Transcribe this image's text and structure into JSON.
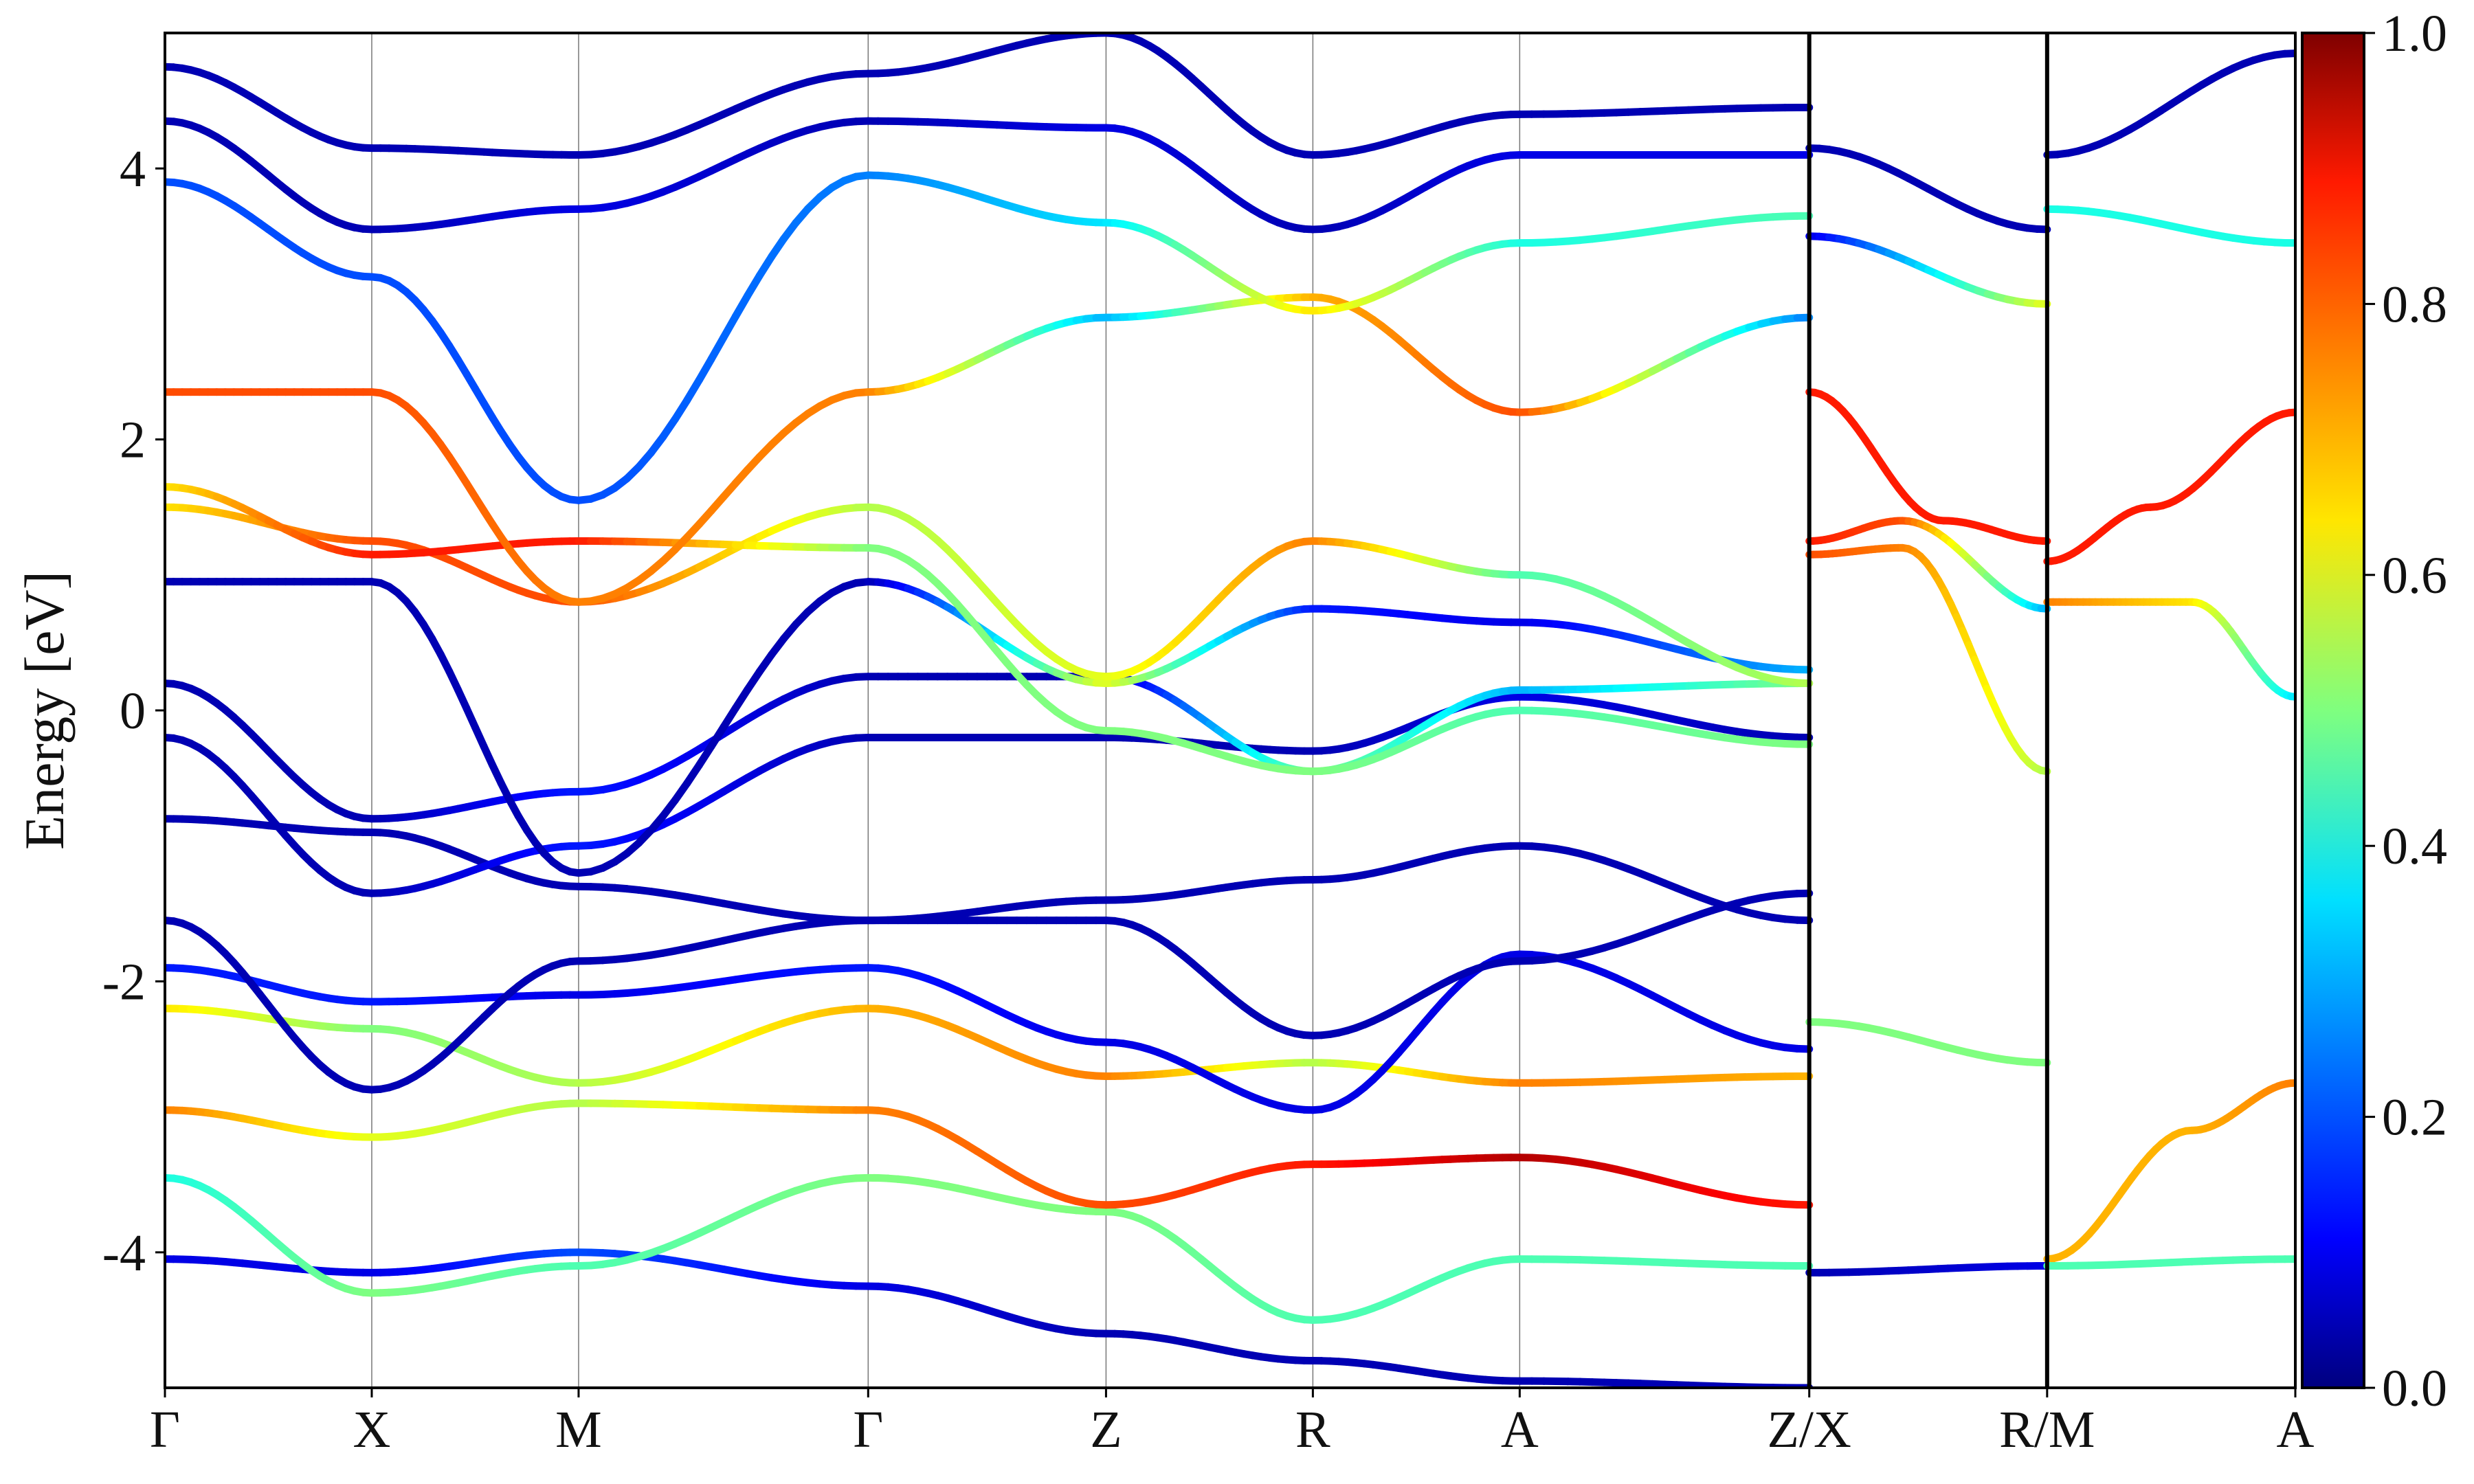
{
  "chart_data": {
    "type": "line",
    "title": "",
    "xlabel": "",
    "ylabel": "Energy [eV]",
    "ylim": [
      -5,
      5
    ],
    "y_ticks": [
      -4,
      -2,
      0,
      2,
      4
    ],
    "y_tick_labels": [
      "-4",
      "-2",
      "0",
      "2",
      "4"
    ],
    "k_points": [
      {
        "label": "Γ",
        "x": 0.0
      },
      {
        "label": "X",
        "x": 1.0
      },
      {
        "label": "M",
        "x": 2.0
      },
      {
        "label": "Γ",
        "x": 3.4
      },
      {
        "label": "Z",
        "x": 4.55
      },
      {
        "label": "R",
        "x": 5.55
      },
      {
        "label": "A",
        "x": 6.55
      },
      {
        "label": "Z/X",
        "x": 7.95
      },
      {
        "label": "R/M",
        "x": 9.1
      },
      {
        "label": "A",
        "x": 10.3
      }
    ],
    "path_breaks": [
      7.95,
      9.1
    ],
    "colorbar": {
      "colormap": "jet",
      "range": [
        0,
        1
      ],
      "ticks": [
        0.0,
        0.2,
        0.4,
        0.6,
        0.8,
        1.0
      ],
      "tick_labels": [
        "0.0",
        "0.2",
        "0.4",
        "0.6",
        "0.8",
        "1.0"
      ]
    },
    "series": [
      {
        "segment": [
          0,
          7.95
        ],
        "points": [
          [
            0,
            -4.05
          ],
          [
            1,
            -4.15
          ],
          [
            2,
            -4.0
          ],
          [
            3.4,
            -4.25
          ],
          [
            4.55,
            -4.6
          ],
          [
            5.55,
            -4.8
          ],
          [
            6.55,
            -4.95
          ],
          [
            7.95,
            -5.0
          ]
        ],
        "weight": [
          0.1,
          0.1,
          0.2,
          0.1,
          0.05,
          0.05,
          0.05,
          0.05
        ]
      },
      {
        "segment": [
          0,
          7.95
        ],
        "points": [
          [
            0,
            -3.45
          ],
          [
            1,
            -4.3
          ],
          [
            2,
            -4.1
          ],
          [
            3.4,
            -3.45
          ],
          [
            4.55,
            -3.7
          ],
          [
            5.55,
            -4.5
          ],
          [
            6.55,
            -4.05
          ],
          [
            7.95,
            -4.1
          ]
        ],
        "weight": [
          0.4,
          0.5,
          0.45,
          0.5,
          0.5,
          0.45,
          0.45,
          0.45
        ]
      },
      {
        "segment": [
          0,
          7.95
        ],
        "points": [
          [
            0,
            -2.95
          ],
          [
            1,
            -3.15
          ],
          [
            2,
            -2.9
          ],
          [
            3.4,
            -2.95
          ],
          [
            4.55,
            -3.65
          ],
          [
            5.55,
            -3.35
          ],
          [
            6.55,
            -3.3
          ],
          [
            7.95,
            -3.65
          ]
        ],
        "weight": [
          0.75,
          0.6,
          0.55,
          0.75,
          0.8,
          0.85,
          0.95,
          0.85
        ]
      },
      {
        "segment": [
          0,
          7.95
        ],
        "points": [
          [
            0,
            -2.2
          ],
          [
            1,
            -2.35
          ],
          [
            2,
            -2.75
          ],
          [
            3.4,
            -2.2
          ],
          [
            4.55,
            -2.7
          ],
          [
            5.55,
            -2.6
          ],
          [
            6.55,
            -2.75
          ],
          [
            7.95,
            -2.7
          ]
        ],
        "weight": [
          0.65,
          0.5,
          0.55,
          0.7,
          0.75,
          0.55,
          0.75,
          0.7
        ]
      },
      {
        "segment": [
          0,
          7.95
        ],
        "points": [
          [
            0,
            -1.9
          ],
          [
            1,
            -2.15
          ],
          [
            2,
            -2.1
          ],
          [
            3.4,
            -1.9
          ],
          [
            4.55,
            -2.45
          ],
          [
            5.55,
            -2.95
          ],
          [
            6.55,
            -1.8
          ],
          [
            7.95,
            -2.5
          ]
        ],
        "weight": [
          0.15,
          0.15,
          0.1,
          0.15,
          0.1,
          0.1,
          0.1,
          0.1
        ]
      },
      {
        "segment": [
          0,
          7.95
        ],
        "points": [
          [
            0,
            -1.55
          ],
          [
            1,
            -2.8
          ],
          [
            2,
            -1.85
          ],
          [
            3.4,
            -1.55
          ],
          [
            4.55,
            -1.55
          ],
          [
            5.55,
            -2.4
          ],
          [
            6.55,
            -1.85
          ],
          [
            7.95,
            -1.35
          ]
        ],
        "weight": [
          0.05,
          0.05,
          0.05,
          0.05,
          0.05,
          0.05,
          0.05,
          0.05
        ]
      },
      {
        "segment": [
          0,
          7.95
        ],
        "points": [
          [
            0,
            -0.8
          ],
          [
            1,
            -0.9
          ],
          [
            2,
            -1.3
          ],
          [
            3.4,
            -1.55
          ],
          [
            4.55,
            -1.4
          ],
          [
            5.55,
            -1.25
          ],
          [
            6.55,
            -1.0
          ],
          [
            7.95,
            -1.55
          ]
        ],
        "weight": [
          0.05,
          0.05,
          0.05,
          0.05,
          0.05,
          0.05,
          0.05,
          0.05
        ]
      },
      {
        "segment": [
          0,
          7.95
        ],
        "points": [
          [
            0,
            -0.2
          ],
          [
            1,
            -1.35
          ],
          [
            2,
            -1.0
          ],
          [
            3.4,
            -0.2
          ],
          [
            4.55,
            -0.2
          ],
          [
            5.55,
            -0.3
          ],
          [
            6.55,
            0.1
          ],
          [
            7.95,
            -0.2
          ]
        ],
        "weight": [
          0.05,
          0.05,
          0.15,
          0.05,
          0.05,
          0.05,
          0.1,
          0.05
        ]
      },
      {
        "segment": [
          0,
          7.95
        ],
        "points": [
          [
            0,
            0.2
          ],
          [
            1,
            -0.8
          ],
          [
            2,
            -0.6
          ],
          [
            3.4,
            0.25
          ],
          [
            4.55,
            0.25
          ],
          [
            5.55,
            -0.45
          ],
          [
            6.55,
            0.15
          ],
          [
            7.95,
            0.2
          ]
        ],
        "weight": [
          0.05,
          0.05,
          0.15,
          0.05,
          0.05,
          0.5,
          0.3,
          0.5
        ]
      },
      {
        "segment": [
          0,
          7.95
        ],
        "points": [
          [
            0,
            0.95
          ],
          [
            1,
            0.95
          ],
          [
            2,
            -1.2
          ],
          [
            3.4,
            0.95
          ],
          [
            4.55,
            0.2
          ],
          [
            5.55,
            0.75
          ],
          [
            6.55,
            0.65
          ],
          [
            7.95,
            0.3
          ]
        ],
        "weight": [
          0.05,
          0.05,
          0.05,
          0.05,
          0.6,
          0.15,
          0.1,
          0.3
        ]
      },
      {
        "segment": [
          0,
          7.95
        ],
        "points": [
          [
            0,
            1.5
          ],
          [
            1,
            1.25
          ],
          [
            2,
            0.8
          ],
          [
            3.4,
            1.5
          ],
          [
            4.55,
            0.25
          ],
          [
            5.55,
            1.25
          ],
          [
            6.55,
            1.0
          ],
          [
            7.95,
            0.2
          ]
        ],
        "weight": [
          0.65,
          0.8,
          0.8,
          0.55,
          0.6,
          0.75,
          0.45,
          0.55
        ]
      },
      {
        "segment": [
          0,
          7.95
        ],
        "points": [
          [
            0,
            1.65
          ],
          [
            1,
            1.15
          ],
          [
            2,
            1.25
          ],
          [
            3.4,
            1.2
          ],
          [
            4.55,
            -0.15
          ],
          [
            5.55,
            -0.45
          ],
          [
            6.55,
            0.0
          ],
          [
            7.95,
            -0.25
          ]
        ],
        "weight": [
          0.65,
          0.85,
          0.85,
          0.5,
          0.5,
          0.5,
          0.45,
          0.5
        ]
      },
      {
        "segment": [
          0,
          7.95
        ],
        "points": [
          [
            0,
            2.35
          ],
          [
            1,
            2.35
          ],
          [
            2,
            0.8
          ],
          [
            3.4,
            2.35
          ],
          [
            4.55,
            2.9
          ],
          [
            5.55,
            3.05
          ],
          [
            6.55,
            2.2
          ],
          [
            7.95,
            2.9
          ]
        ],
        "weight": [
          0.8,
          0.8,
          0.75,
          0.75,
          0.3,
          0.7,
          0.8,
          0.25
        ]
      },
      {
        "segment": [
          0,
          7.95
        ],
        "points": [
          [
            0,
            3.9
          ],
          [
            1,
            3.2
          ],
          [
            2,
            1.55
          ],
          [
            3.4,
            3.95
          ],
          [
            4.55,
            3.6
          ],
          [
            5.55,
            2.95
          ],
          [
            6.55,
            3.45
          ],
          [
            7.95,
            3.65
          ]
        ],
        "weight": [
          0.2,
          0.2,
          0.2,
          0.25,
          0.35,
          0.65,
          0.4,
          0.45
        ]
      },
      {
        "segment": [
          0,
          7.95
        ],
        "points": [
          [
            0,
            4.35
          ],
          [
            1,
            3.55
          ],
          [
            2,
            3.7
          ],
          [
            3.4,
            4.35
          ],
          [
            4.55,
            4.3
          ],
          [
            5.55,
            3.55
          ],
          [
            6.55,
            4.1
          ],
          [
            7.95,
            4.1
          ]
        ],
        "weight": [
          0.05,
          0.05,
          0.1,
          0.05,
          0.1,
          0.05,
          0.1,
          0.1
        ]
      },
      {
        "segment": [
          0,
          7.95
        ],
        "points": [
          [
            0,
            4.75
          ],
          [
            1,
            4.15
          ],
          [
            2,
            4.1
          ],
          [
            3.4,
            4.7
          ],
          [
            4.55,
            5.0
          ],
          [
            5.55,
            4.1
          ],
          [
            6.55,
            4.4
          ],
          [
            7.95,
            4.45
          ]
        ],
        "weight": [
          0.05,
          0.05,
          0.05,
          0.05,
          0.05,
          0.05,
          0.05,
          0.05
        ]
      },
      {
        "segment": [
          7.95,
          9.1
        ],
        "points": [
          [
            7.95,
            -4.15
          ],
          [
            9.1,
            -4.1
          ]
        ],
        "weight": [
          0.05,
          0.1
        ]
      },
      {
        "segment": [
          7.95,
          9.1
        ],
        "points": [
          [
            7.95,
            -2.3
          ],
          [
            9.1,
            -2.6
          ]
        ],
        "weight": [
          0.5,
          0.5
        ]
      },
      {
        "segment": [
          7.95,
          9.1
        ],
        "points": [
          [
            7.95,
            1.15
          ],
          [
            8.4,
            1.2
          ],
          [
            9.1,
            -0.45
          ]
        ],
        "weight": [
          0.8,
          0.75,
          0.55
        ]
      },
      {
        "segment": [
          7.95,
          9.1
        ],
        "points": [
          [
            7.95,
            1.25
          ],
          [
            8.4,
            1.4
          ],
          [
            9.1,
            0.75
          ]
        ],
        "weight": [
          0.85,
          0.8,
          0.3
        ]
      },
      {
        "segment": [
          7.95,
          9.1
        ],
        "points": [
          [
            7.95,
            2.35
          ],
          [
            8.6,
            1.4
          ],
          [
            9.1,
            1.25
          ]
        ],
        "weight": [
          0.85,
          0.85,
          0.85
        ]
      },
      {
        "segment": [
          7.95,
          9.1
        ],
        "points": [
          [
            7.95,
            3.5
          ],
          [
            9.1,
            3.0
          ]
        ],
        "weight": [
          0.1,
          0.6
        ]
      },
      {
        "segment": [
          7.95,
          9.1
        ],
        "points": [
          [
            7.95,
            4.15
          ],
          [
            9.1,
            3.55
          ]
        ],
        "weight": [
          0.05,
          0.05
        ]
      },
      {
        "segment": [
          9.1,
          10.3
        ],
        "points": [
          [
            9.1,
            -4.05
          ],
          [
            9.8,
            -3.1
          ],
          [
            10.3,
            -2.75
          ]
        ],
        "weight": [
          0.7,
          0.7,
          0.75
        ]
      },
      {
        "segment": [
          9.1,
          10.3
        ],
        "points": [
          [
            9.1,
            -4.1
          ],
          [
            10.3,
            -4.05
          ]
        ],
        "weight": [
          0.45,
          0.45
        ]
      },
      {
        "segment": [
          9.1,
          10.3
        ],
        "points": [
          [
            9.1,
            0.8
          ],
          [
            9.8,
            0.8
          ],
          [
            10.3,
            0.1
          ]
        ],
        "weight": [
          0.75,
          0.65,
          0.35
        ]
      },
      {
        "segment": [
          9.1,
          10.3
        ],
        "points": [
          [
            9.1,
            1.1
          ],
          [
            9.6,
            1.5
          ],
          [
            10.3,
            2.2
          ]
        ],
        "weight": [
          0.85,
          0.85,
          0.85
        ]
      },
      {
        "segment": [
          9.1,
          10.3
        ],
        "points": [
          [
            9.1,
            3.7
          ],
          [
            10.3,
            3.45
          ]
        ],
        "weight": [
          0.4,
          0.4
        ]
      },
      {
        "segment": [
          9.1,
          10.3
        ],
        "points": [
          [
            9.1,
            4.1
          ],
          [
            10.3,
            4.85
          ]
        ],
        "weight": [
          0.05,
          0.05
        ]
      }
    ]
  }
}
